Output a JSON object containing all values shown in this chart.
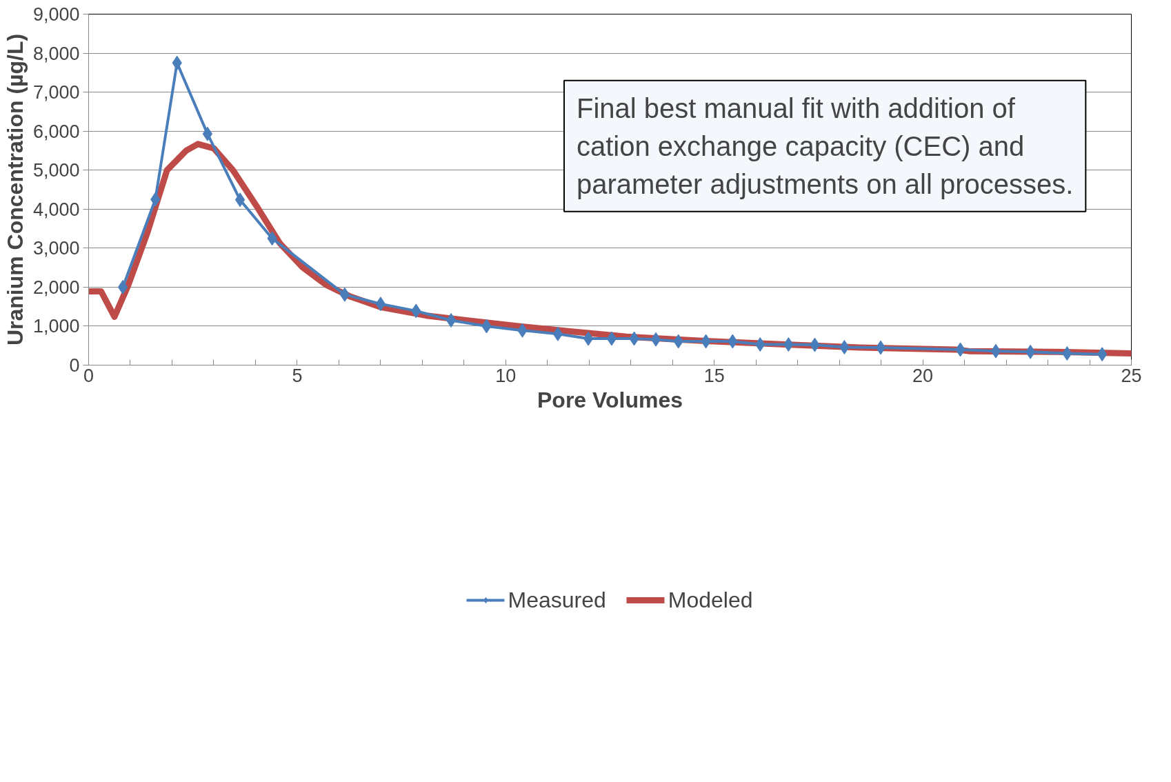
{
  "chart_data": {
    "type": "line",
    "xlabel": "Pore Volumes",
    "ylabel": "Uranium Concentration (µg/L)",
    "xlim": [
      0,
      25
    ],
    "ylim": [
      0,
      9000
    ],
    "xticks": [
      0,
      {
        "value": 1,
        "label": null
      },
      {
        "value": 2,
        "label": null
      },
      {
        "value": 3,
        "label": null
      },
      {
        "value": 4,
        "label": null
      },
      5,
      {
        "value": 6,
        "label": null
      },
      {
        "value": 7,
        "label": null
      },
      {
        "value": 8,
        "label": null
      },
      {
        "value": 9,
        "label": null
      },
      10,
      {
        "value": 11,
        "label": null
      },
      {
        "value": 12,
        "label": null
      },
      {
        "value": 13,
        "label": null
      },
      {
        "value": 14,
        "label": null
      },
      15,
      {
        "value": 16,
        "label": null
      },
      {
        "value": 17,
        "label": null
      },
      {
        "value": 18,
        "label": null
      },
      {
        "value": 19,
        "label": null
      },
      20,
      {
        "value": 21,
        "label": null
      },
      {
        "value": 22,
        "label": null
      },
      {
        "value": 23,
        "label": null
      },
      {
        "value": 24,
        "label": null
      },
      25
    ],
    "yticks": [
      0,
      {
        "value": 1000,
        "label": "1,000"
      },
      {
        "value": 2000,
        "label": "2,000"
      },
      {
        "value": 3000,
        "label": "3,000"
      },
      {
        "value": 4000,
        "label": "4,000"
      },
      {
        "value": 5000,
        "label": "5,000"
      },
      {
        "value": 6000,
        "label": "6,000"
      },
      {
        "value": 7000,
        "label": "7,000"
      },
      {
        "value": 8000,
        "label": "8,000"
      },
      {
        "value": 9000,
        "label": "9,000"
      }
    ],
    "grid": "y",
    "legend": "bottom",
    "annotations": [
      "Final best manual fit with addition of\ncation exchange capacity (CEC) and\nparameter adjustments on all processes."
    ],
    "series": [
      {
        "name": "Measured",
        "color": "#4a7ebb",
        "marker": "diamond",
        "x": [
          0.82,
          1.6,
          2.12,
          2.85,
          3.63,
          4.4,
          6.14,
          7.0,
          7.85,
          8.69,
          9.54,
          10.4,
          11.25,
          11.98,
          12.54,
          13.08,
          13.6,
          14.14,
          14.8,
          15.44,
          16.1,
          16.78,
          17.41,
          18.12,
          18.99,
          20.9,
          21.75,
          22.58,
          23.46,
          24.3
        ],
        "values": [
          2000,
          4250,
          7750,
          5930,
          4240,
          3250,
          1810,
          1570,
          1390,
          1150,
          1000,
          890,
          800,
          680,
          680,
          680,
          660,
          610,
          610,
          610,
          530,
          530,
          520,
          460,
          450,
          400,
          360,
          340,
          300,
          280
        ]
      },
      {
        "name": "Modeled",
        "color": "#be4b48",
        "marker": "none",
        "x": [
          0,
          0.3,
          0.62,
          0.95,
          1.41,
          1.88,
          2.34,
          2.62,
          3.0,
          3.46,
          4.02,
          4.58,
          5.13,
          5.69,
          6.25,
          7.0,
          8.1,
          9.2,
          10.3,
          11.5,
          12.9,
          14.8,
          16.7,
          18.5,
          19.8,
          20.8,
          21.1,
          23.2,
          25
        ],
        "values": [
          1890,
          1890,
          1240,
          2050,
          3400,
          5000,
          5500,
          5670,
          5560,
          5000,
          4090,
          3130,
          2510,
          2060,
          1770,
          1490,
          1270,
          1130,
          1000,
          870,
          730,
          620,
          530,
          450,
          420,
          400,
          360,
          340,
          300
        ]
      }
    ]
  }
}
